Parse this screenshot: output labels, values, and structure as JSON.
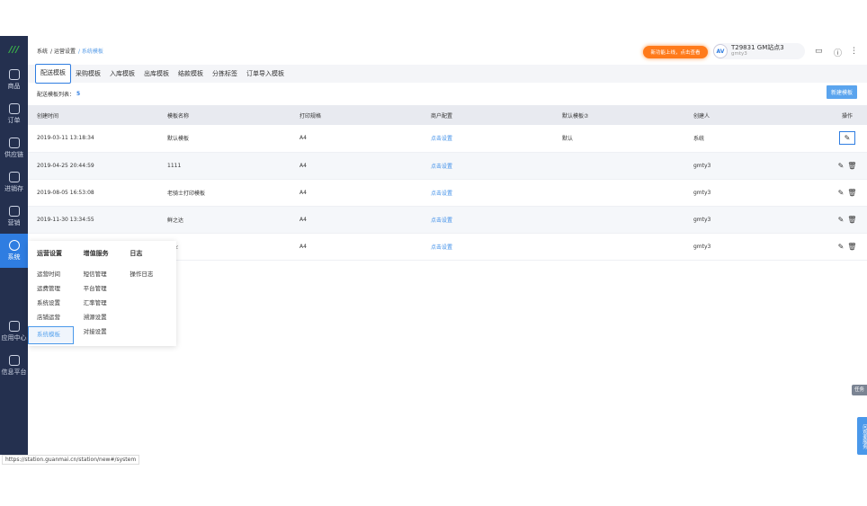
{
  "sidebar": {
    "items": [
      {
        "label": "商品"
      },
      {
        "label": "订单"
      },
      {
        "label": "供应链"
      },
      {
        "label": "进销存"
      },
      {
        "label": "营销"
      },
      {
        "label": "系统",
        "active": true
      },
      {
        "label": "应用中心"
      },
      {
        "label": "信息平台"
      }
    ]
  },
  "breadcrumb": [
    "系统",
    "/ 运营设置",
    "/ 系统模板"
  ],
  "header": {
    "promo": "新功能上线，点击查看",
    "user_name": "T29831 GM站点3",
    "user_sub": "gmty3",
    "avatar": "AV"
  },
  "tabs": [
    "配送模板",
    "采购模板",
    "入库模板",
    "出库模板",
    "结款模板",
    "分拣标签",
    "订单导入模板"
  ],
  "list": {
    "label": "配送模板列表：",
    "count": "5",
    "new_button": "新建模板"
  },
  "table": {
    "headers": [
      "创建时间",
      "模板名称",
      "打印规格",
      "商户配置",
      "默认模板⑦",
      "创建人",
      "操作"
    ],
    "rows": [
      {
        "time": "2019-03-11 13:18:34",
        "name": "默认模板",
        "spec": "A4",
        "config": "点击设置",
        "default": "默认",
        "creator": "系统"
      },
      {
        "time": "2019-04-25 20:44:59",
        "name": "1111",
        "spec": "A4",
        "config": "点击设置",
        "default": "",
        "creator": "gmty3"
      },
      {
        "time": "2019-08-05 16:53:08",
        "name": "老骑士打印模板",
        "spec": "A4",
        "config": "点击设置",
        "default": "",
        "creator": "gmty3"
      },
      {
        "time": "2019-11-30 13:34:55",
        "name": "鲜之达",
        "spec": "A4",
        "config": "点击设置",
        "default": "",
        "creator": "gmty3"
      },
      {
        "time": "",
        "name": "农业",
        "spec": "A4",
        "config": "点击设置",
        "default": "",
        "creator": "gmty3"
      }
    ]
  },
  "menu": {
    "columns": [
      {
        "title": "运营设置",
        "items": [
          "运营时间",
          "运费管理",
          "系统设置",
          "店铺运营",
          "系统模板"
        ]
      },
      {
        "title": "增值服务",
        "items": [
          "短信管理",
          "平台管理",
          "汇率管理",
          "溯源设置",
          "对接设置"
        ]
      },
      {
        "title": "日志",
        "items": [
          "操作日志"
        ]
      }
    ]
  },
  "floats": {
    "task": "任务",
    "consult": "问观麦服务"
  },
  "status_url": "https://station.guanmai.cn/station/new#/system"
}
